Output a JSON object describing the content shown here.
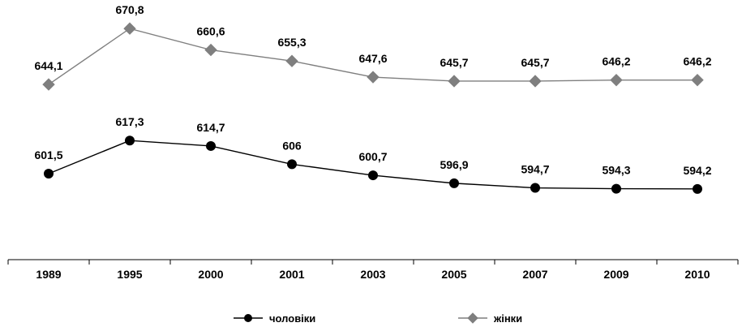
{
  "chart_data": {
    "type": "line",
    "x": [
      "1989",
      "1995",
      "2000",
      "2001",
      "2003",
      "2005",
      "2007",
      "2009",
      "2010"
    ],
    "series": [
      {
        "name": "чоловіки",
        "values": [
          601.5,
          617.3,
          614.7,
          606,
          600.7,
          596.9,
          594.7,
          594.3,
          594.2
        ],
        "labels": [
          "601,5",
          "617,3",
          "614,7",
          "606",
          "600,7",
          "596,9",
          "594,7",
          "594,3",
          "594,2"
        ],
        "color": "#000000",
        "marker": "circle"
      },
      {
        "name": "жінки",
        "values": [
          644.1,
          670.8,
          660.6,
          655.3,
          647.6,
          645.7,
          645.7,
          646.2,
          646.2
        ],
        "labels": [
          "644,1",
          "670,8",
          "660,6",
          "655,3",
          "647,6",
          "645,7",
          "645,7",
          "646,2",
          "646,2"
        ],
        "color": "#7f7f7f",
        "marker": "diamond"
      }
    ],
    "title": "",
    "xlabel": "",
    "ylabel": "",
    "grid": false,
    "legend_position": "bottom"
  }
}
